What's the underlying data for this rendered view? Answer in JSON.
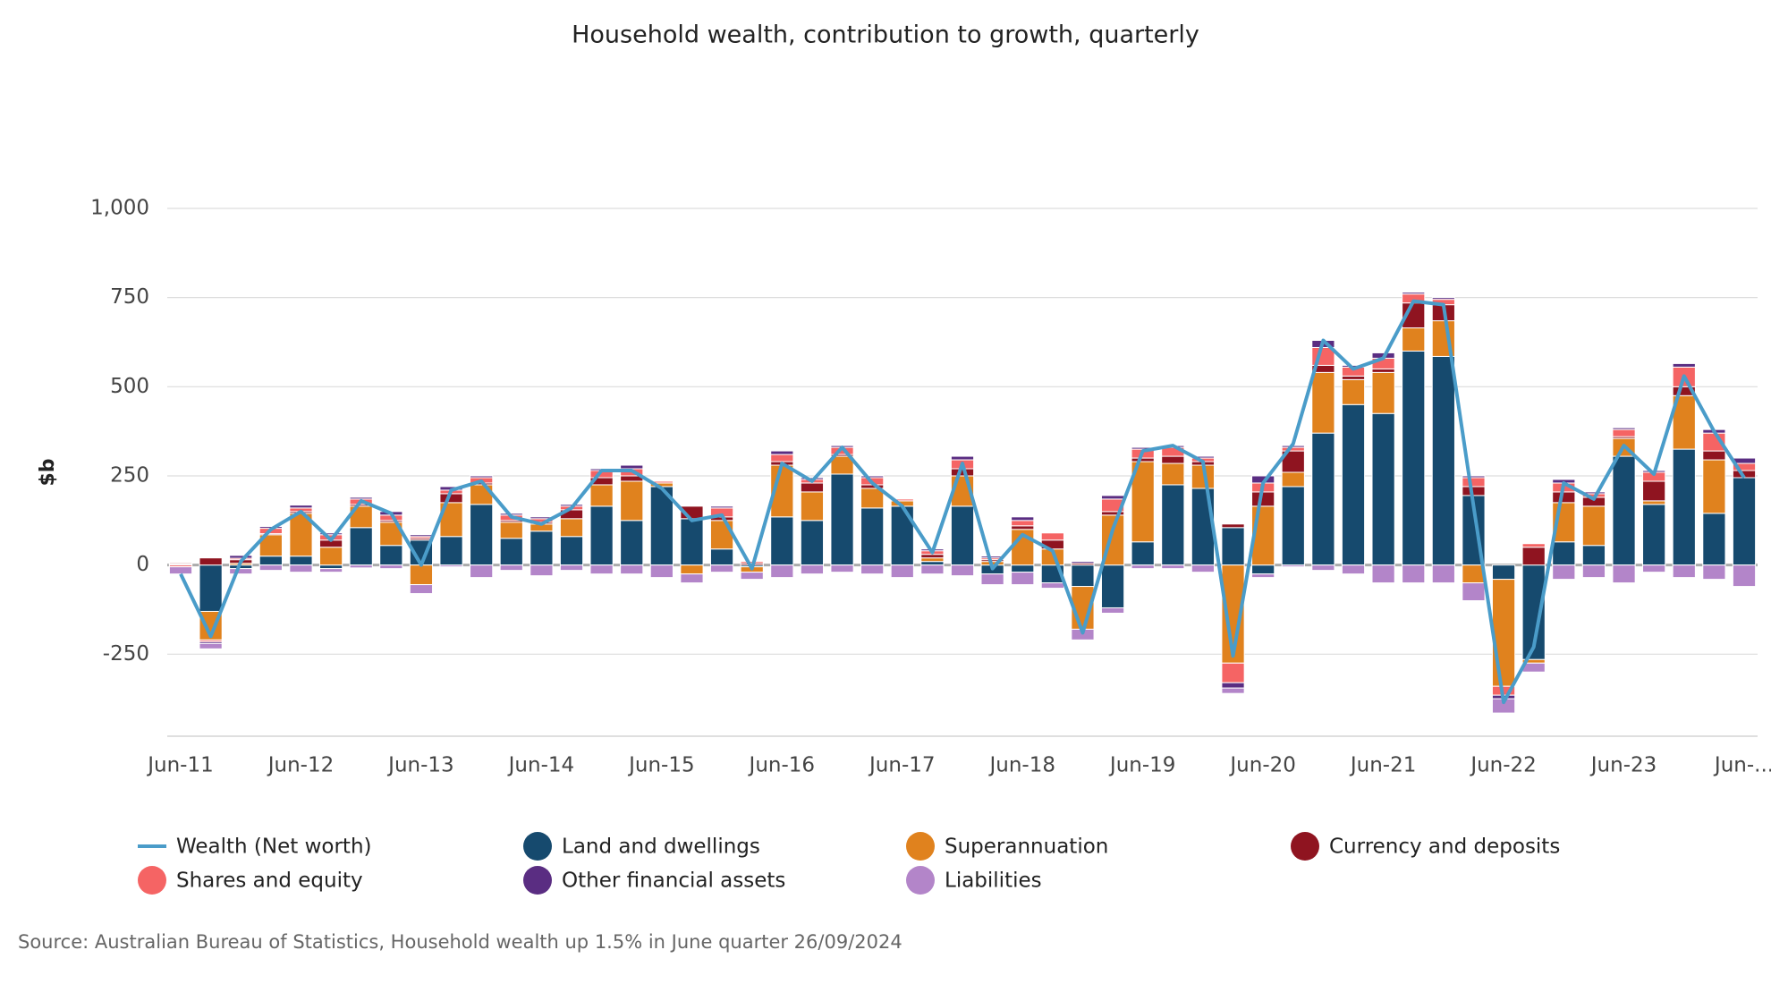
{
  "chart_data": {
    "type": "bar",
    "stacked": true,
    "title": "Household wealth, contribution to growth, quarterly",
    "y_label": "$b",
    "source": "Source: Australian Bureau of Statistics, Household wealth up 1.5% in June quarter 26/09/2024",
    "categories": [
      "Jun-11",
      null,
      null,
      null,
      "Jun-12",
      null,
      null,
      null,
      "Jun-13",
      null,
      null,
      null,
      "Jun-14",
      null,
      null,
      null,
      "Jun-15",
      null,
      null,
      null,
      "Jun-16",
      null,
      null,
      null,
      "Jun-17",
      null,
      null,
      null,
      "Jun-18",
      null,
      null,
      null,
      "Jun-19",
      null,
      null,
      null,
      "Jun-20",
      null,
      null,
      null,
      "Jun-21",
      null,
      null,
      null,
      "Jun-22",
      null,
      null,
      null,
      "Jun-23",
      null,
      null,
      null,
      "Jun-..."
    ],
    "series": [
      {
        "name": "Wealth (Net worth)",
        "type": "line",
        "color": "#4a9cc9",
        "values": [
          -25,
          -200,
          10,
          100,
          150,
          70,
          180,
          145,
          0,
          210,
          235,
          135,
          115,
          160,
          265,
          265,
          215,
          125,
          140,
          -10,
          285,
          235,
          330,
          230,
          165,
          35,
          285,
          -10,
          85,
          40,
          -190,
          100,
          320,
          335,
          290,
          -255,
          230,
          340,
          630,
          550,
          580,
          740,
          730,
          165,
          -385,
          -230,
          230,
          185,
          335,
          255,
          530,
          375,
          245
        ]
      },
      {
        "name": "Land and dwellings",
        "color": "#164a6e",
        "values": [
          3,
          -130,
          -10,
          25,
          25,
          -10,
          105,
          55,
          70,
          80,
          170,
          75,
          95,
          80,
          165,
          125,
          220,
          130,
          45,
          -5,
          135,
          125,
          255,
          160,
          165,
          10,
          165,
          -25,
          -20,
          -50,
          -60,
          -120,
          65,
          225,
          215,
          105,
          -25,
          220,
          370,
          450,
          425,
          600,
          585,
          195,
          -40,
          -265,
          65,
          55,
          305,
          170,
          325,
          145,
          245
        ]
      },
      {
        "name": "Superannuation",
        "color": "#e0821e",
        "values": [
          2,
          -80,
          5,
          60,
          120,
          50,
          60,
          65,
          -55,
          95,
          55,
          45,
          20,
          50,
          60,
          110,
          10,
          -25,
          80,
          -15,
          145,
          80,
          50,
          55,
          15,
          10,
          85,
          10,
          100,
          45,
          -120,
          140,
          225,
          60,
          65,
          -275,
          165,
          40,
          170,
          70,
          115,
          65,
          100,
          -50,
          -300,
          -10,
          110,
          110,
          50,
          10,
          150,
          150,
          0
        ]
      },
      {
        "name": "Currency and deposits",
        "color": "#8f1420",
        "values": [
          3,
          20,
          10,
          3,
          5,
          20,
          5,
          5,
          5,
          25,
          5,
          5,
          5,
          25,
          20,
          15,
          0,
          35,
          10,
          5,
          10,
          25,
          5,
          10,
          0,
          10,
          20,
          5,
          10,
          25,
          5,
          10,
          10,
          20,
          10,
          10,
          40,
          60,
          20,
          10,
          10,
          70,
          45,
          25,
          0,
          50,
          30,
          25,
          5,
          55,
          25,
          25,
          20
        ]
      },
      {
        "name": "Shares and equity",
        "color": "#f56464",
        "values": [
          -5,
          -5,
          4,
          15,
          10,
          15,
          15,
          15,
          5,
          10,
          15,
          15,
          10,
          10,
          20,
          20,
          5,
          0,
          25,
          5,
          20,
          10,
          20,
          20,
          5,
          10,
          25,
          5,
          15,
          20,
          0,
          35,
          25,
          25,
          10,
          -55,
          25,
          10,
          50,
          25,
          30,
          25,
          15,
          25,
          -25,
          10,
          25,
          10,
          20,
          25,
          55,
          50,
          20
        ]
      },
      {
        "name": "Other financial assets",
        "color": "#5a2d82",
        "values": [
          2,
          -5,
          8,
          5,
          8,
          5,
          5,
          10,
          5,
          10,
          5,
          5,
          5,
          5,
          5,
          10,
          0,
          0,
          5,
          0,
          10,
          5,
          5,
          5,
          0,
          5,
          10,
          5,
          10,
          0,
          5,
          10,
          5,
          5,
          5,
          -15,
          20,
          5,
          20,
          5,
          15,
          5,
          5,
          5,
          -10,
          0,
          10,
          5,
          5,
          5,
          10,
          10,
          15
        ]
      },
      {
        "name": "Liabilities",
        "color": "#b385c9",
        "values": [
          -20,
          -15,
          -15,
          -15,
          -20,
          -10,
          -8,
          -10,
          -25,
          -5,
          -35,
          -15,
          -30,
          -15,
          -25,
          -25,
          -35,
          -25,
          -20,
          -20,
          -35,
          -25,
          -20,
          -25,
          -35,
          -25,
          -30,
          -30,
          -35,
          -15,
          -30,
          -15,
          -10,
          -10,
          -20,
          -15,
          -10,
          -5,
          -15,
          -25,
          -50,
          -50,
          -50,
          -50,
          -40,
          -25,
          -40,
          -35,
          -50,
          -20,
          -35,
          -40,
          -60
        ]
      }
    ],
    "ylim": [
      -480,
      1000
    ],
    "yticks": [
      -250,
      0,
      250,
      500,
      750,
      {
        "value": 1000,
        "label": "1,000"
      }
    ],
    "grid": true,
    "legend": "bottom"
  }
}
